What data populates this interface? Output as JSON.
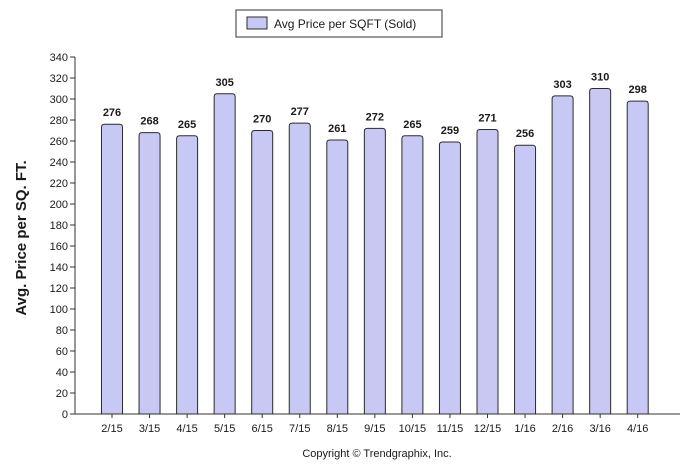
{
  "chart_data": {
    "type": "bar",
    "title": "",
    "ylabel": "Avg. Price per SQ. FT.",
    "xlabel": "",
    "categories": [
      "2/15",
      "3/15",
      "4/15",
      "5/15",
      "6/15",
      "7/15",
      "8/15",
      "9/15",
      "10/15",
      "11/15",
      "12/15",
      "1/16",
      "2/16",
      "3/16",
      "4/16"
    ],
    "series": [
      {
        "name": "Avg Price per SQFT (Sold)",
        "values": [
          276,
          268,
          265,
          305,
          270,
          277,
          261,
          272,
          265,
          259,
          271,
          256,
          303,
          310,
          298
        ],
        "color": "#c8c8f4",
        "stroke": "#2b2b2b"
      }
    ],
    "ylim": [
      0,
      340
    ],
    "yticks": [
      0,
      20,
      40,
      60,
      80,
      100,
      120,
      140,
      160,
      180,
      200,
      220,
      240,
      260,
      280,
      300,
      320,
      340
    ],
    "grid": false,
    "legend": "top-center"
  },
  "footer": {
    "copyright": "Copyright © Trendgraphix, Inc."
  }
}
